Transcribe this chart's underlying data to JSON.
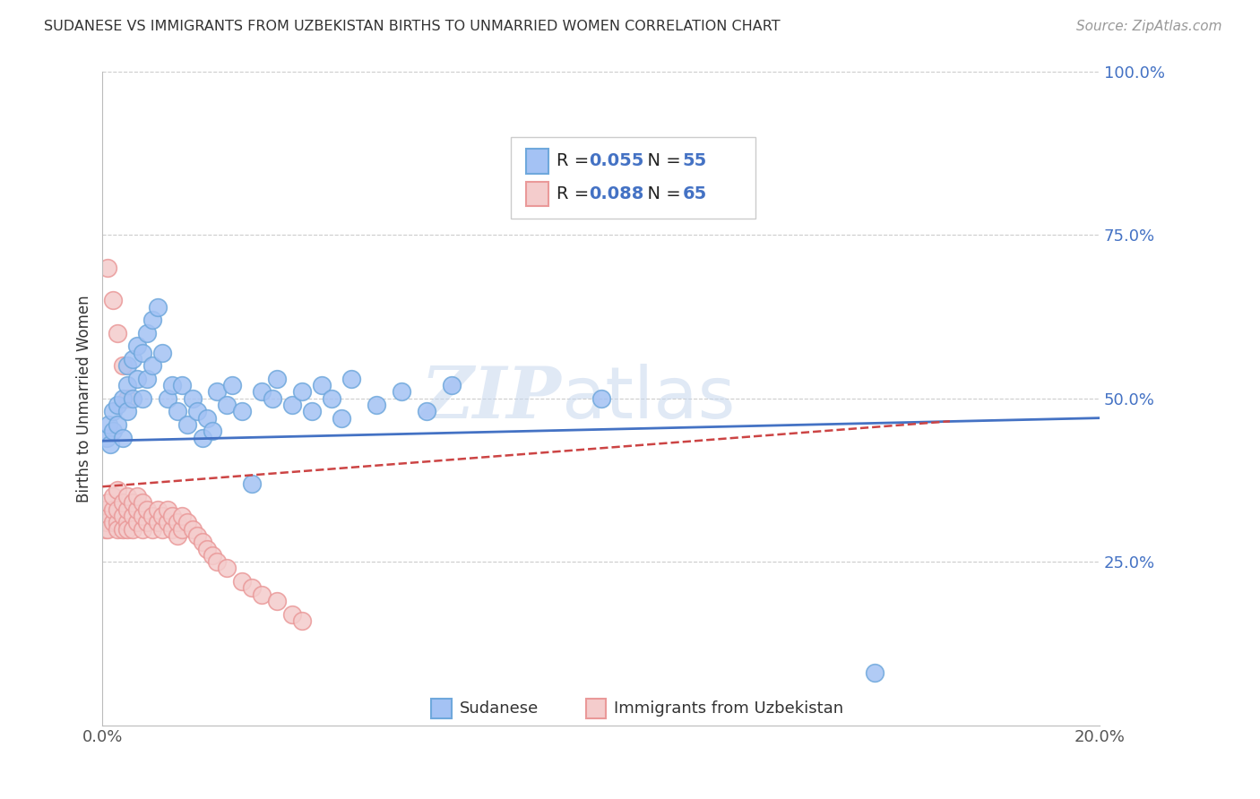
{
  "title": "SUDANESE VS IMMIGRANTS FROM UZBEKISTAN BIRTHS TO UNMARRIED WOMEN CORRELATION CHART",
  "source": "Source: ZipAtlas.com",
  "ylabel": "Births to Unmarried Women",
  "xlim": [
    0.0,
    0.2
  ],
  "ylim": [
    0.0,
    1.0
  ],
  "xtick_vals": [
    0.0,
    0.2
  ],
  "xtick_labels": [
    "0.0%",
    "20.0%"
  ],
  "ytick_vals": [
    0.25,
    0.5,
    0.75,
    1.0
  ],
  "ytick_labels": [
    "25.0%",
    "50.0%",
    "75.0%",
    "100.0%"
  ],
  "blue_scatter_x": [
    0.0008,
    0.0012,
    0.0015,
    0.002,
    0.002,
    0.003,
    0.003,
    0.004,
    0.004,
    0.005,
    0.005,
    0.005,
    0.006,
    0.006,
    0.007,
    0.007,
    0.008,
    0.008,
    0.009,
    0.009,
    0.01,
    0.01,
    0.011,
    0.012,
    0.013,
    0.014,
    0.015,
    0.016,
    0.017,
    0.018,
    0.019,
    0.02,
    0.021,
    0.022,
    0.023,
    0.025,
    0.026,
    0.028,
    0.03,
    0.032,
    0.034,
    0.035,
    0.038,
    0.04,
    0.042,
    0.044,
    0.046,
    0.048,
    0.05,
    0.055,
    0.06,
    0.065,
    0.07,
    0.155,
    0.1
  ],
  "blue_scatter_y": [
    0.44,
    0.46,
    0.43,
    0.45,
    0.48,
    0.46,
    0.49,
    0.5,
    0.44,
    0.52,
    0.55,
    0.48,
    0.56,
    0.5,
    0.53,
    0.58,
    0.57,
    0.5,
    0.6,
    0.53,
    0.62,
    0.55,
    0.64,
    0.57,
    0.5,
    0.52,
    0.48,
    0.52,
    0.46,
    0.5,
    0.48,
    0.44,
    0.47,
    0.45,
    0.51,
    0.49,
    0.52,
    0.48,
    0.37,
    0.51,
    0.5,
    0.53,
    0.49,
    0.51,
    0.48,
    0.52,
    0.5,
    0.47,
    0.53,
    0.49,
    0.51,
    0.48,
    0.52,
    0.08,
    0.5
  ],
  "pink_scatter_x": [
    0.0002,
    0.0004,
    0.0006,
    0.0008,
    0.001,
    0.001,
    0.001,
    0.002,
    0.002,
    0.002,
    0.003,
    0.003,
    0.003,
    0.003,
    0.004,
    0.004,
    0.004,
    0.005,
    0.005,
    0.005,
    0.005,
    0.006,
    0.006,
    0.006,
    0.007,
    0.007,
    0.007,
    0.008,
    0.008,
    0.008,
    0.009,
    0.009,
    0.01,
    0.01,
    0.011,
    0.011,
    0.012,
    0.012,
    0.013,
    0.013,
    0.014,
    0.014,
    0.015,
    0.015,
    0.016,
    0.016,
    0.017,
    0.018,
    0.019,
    0.02,
    0.021,
    0.022,
    0.023,
    0.025,
    0.028,
    0.03,
    0.032,
    0.035,
    0.038,
    0.04,
    0.001,
    0.002,
    0.003,
    0.004,
    0.005
  ],
  "pink_scatter_y": [
    0.32,
    0.33,
    0.3,
    0.31,
    0.32,
    0.34,
    0.3,
    0.31,
    0.33,
    0.35,
    0.31,
    0.33,
    0.36,
    0.3,
    0.32,
    0.34,
    0.3,
    0.31,
    0.33,
    0.35,
    0.3,
    0.32,
    0.34,
    0.3,
    0.31,
    0.33,
    0.35,
    0.3,
    0.32,
    0.34,
    0.31,
    0.33,
    0.3,
    0.32,
    0.31,
    0.33,
    0.3,
    0.32,
    0.31,
    0.33,
    0.3,
    0.32,
    0.29,
    0.31,
    0.3,
    0.32,
    0.31,
    0.3,
    0.29,
    0.28,
    0.27,
    0.26,
    0.25,
    0.24,
    0.22,
    0.21,
    0.2,
    0.19,
    0.17,
    0.16,
    0.7,
    0.65,
    0.6,
    0.55,
    0.5
  ],
  "blue_trend_x": [
    0.0,
    0.2
  ],
  "blue_trend_y": [
    0.435,
    0.47
  ],
  "pink_trend_x": [
    0.0,
    0.17
  ],
  "pink_trend_y": [
    0.365,
    0.465
  ],
  "blue_color": "#4472c4",
  "blue_fill": "#a4c2f4",
  "blue_edge": "#6fa8dc",
  "pink_color": "#cc4444",
  "pink_fill": "#f4cccc",
  "pink_edge": "#ea9999",
  "watermark": "ZIPatlas",
  "legend_R1": "R = 0.055",
  "legend_N1": "N = 55",
  "legend_R2": "R = 0.088",
  "legend_N2": "N = 65"
}
